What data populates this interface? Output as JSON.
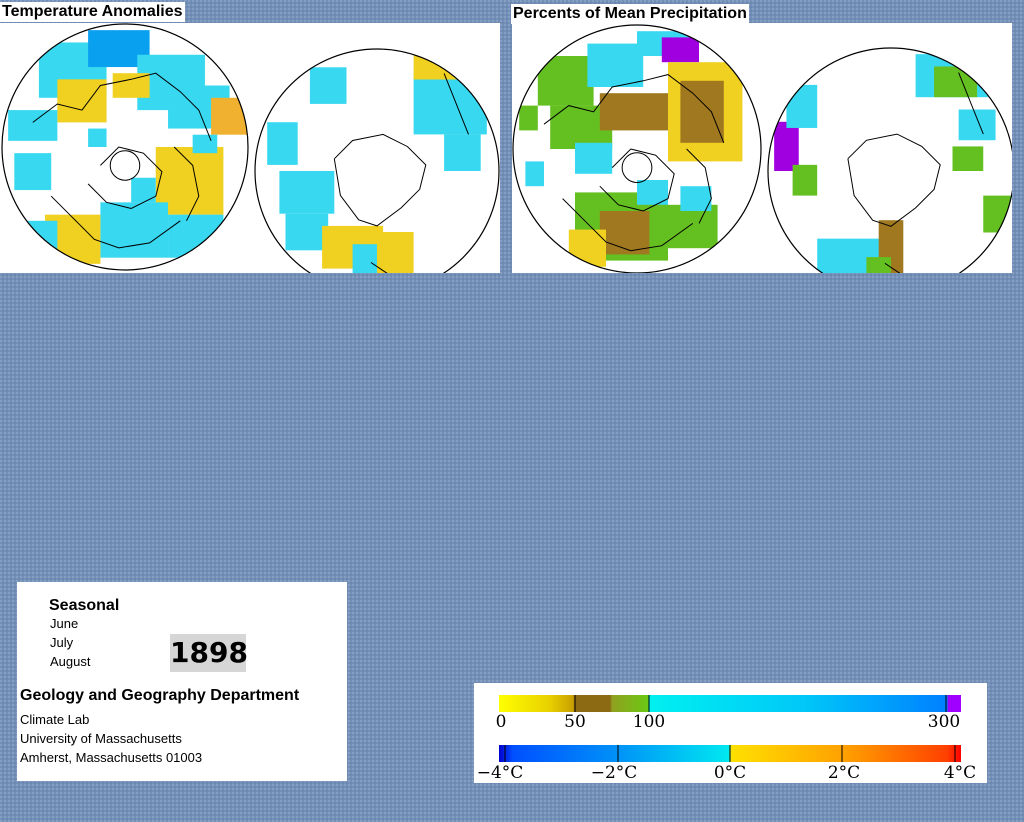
{
  "temperature_panel": {
    "title": "Temperature Anomalies",
    "maps": [
      {
        "name": "northern-hemisphere-temperature-map"
      },
      {
        "name": "southern-hemisphere-temperature-map"
      }
    ]
  },
  "precipitation_panel": {
    "title": "Percents of Mean Precipitation",
    "maps": [
      {
        "name": "northern-hemisphere-precipitation-map"
      },
      {
        "name": "southern-hemisphere-precipitation-map"
      }
    ]
  },
  "info": {
    "season_label": "Seasonal",
    "months": [
      "June",
      "July",
      "August"
    ],
    "year": "1898",
    "department": "Geology and Geography Department",
    "address_lines": [
      "Climate Lab",
      "University of Massachusetts",
      "Amherst, Massachusetts 01003"
    ]
  },
  "legends": {
    "precipitation": {
      "tick_labels": [
        "0",
        "50",
        "100",
        "300"
      ],
      "colors": [
        "#ffff00",
        "#c8a000",
        "#8c6a14",
        "#6cc814",
        "#00f0f0",
        "#0080ff",
        "#a000ff"
      ]
    },
    "temperature": {
      "tick_labels": [
        "−4°C",
        "−2°C",
        "0°C",
        "2°C",
        "4°C"
      ],
      "colors": [
        "#0000d0",
        "#0090ff",
        "#00e8f0",
        "#ffe000",
        "#ff9000",
        "#ff0000"
      ]
    }
  },
  "colors": {
    "background": "#7390b8",
    "cyan": "#38d8f0",
    "blue": "#0aa0f0",
    "yellow": "#f0d020",
    "orange": "#f0b030",
    "green": "#64c020",
    "brown": "#a07820",
    "purple": "#a000e0"
  }
}
